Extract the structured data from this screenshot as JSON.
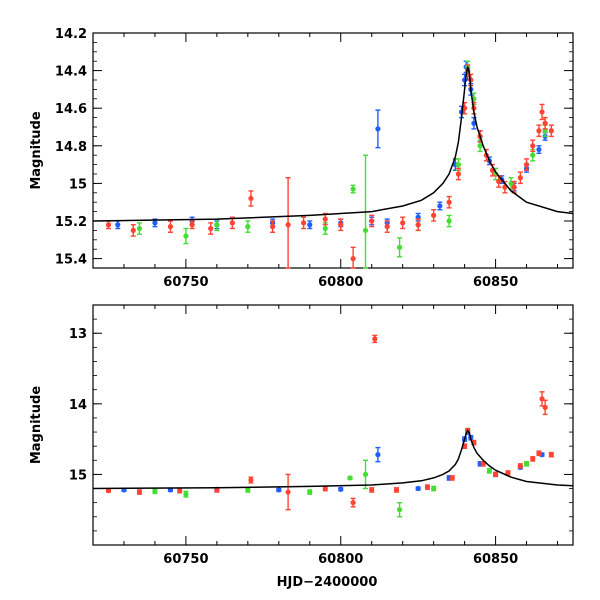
{
  "chart_data": [
    {
      "type": "scatter",
      "title": "",
      "xlabel": "",
      "ylabel": "Magnitude",
      "xlim": [
        60720,
        60875
      ],
      "ylim": [
        15.45,
        14.2
      ],
      "y_inverted": true,
      "x_ticks": [
        60750,
        60800,
        60850
      ],
      "x_tick_labels": [
        "60750",
        "60800",
        "60850"
      ],
      "y_ticks": [
        14.2,
        14.4,
        14.6,
        14.8,
        15,
        15.2,
        15.4
      ],
      "y_tick_labels": [
        "14.2",
        "14.4",
        "14.6",
        "14.8",
        "15",
        "15.2",
        "15.4"
      ],
      "grid": false,
      "legend": "none",
      "colors": {
        "blue": "#1f5fff",
        "green": "#44dd33",
        "red": "#ff4433",
        "model": "#000000"
      },
      "series": [
        {
          "color": "blue",
          "x": [
            60728,
            60740,
            60752,
            60760,
            60778,
            60790,
            60800,
            60810,
            60815,
            60825,
            60832,
            60837,
            60839,
            60840,
            60840.5,
            60841,
            60842,
            60843,
            60845,
            60848,
            60852,
            60856,
            60860,
            60864,
            60866,
            60812
          ],
          "y": [
            15.22,
            15.21,
            15.2,
            15.22,
            15.21,
            15.22,
            15.21,
            15.2,
            15.21,
            15.18,
            15.12,
            14.9,
            14.62,
            14.45,
            14.38,
            14.42,
            14.5,
            14.68,
            14.75,
            14.88,
            14.98,
            15.02,
            14.92,
            14.82,
            14.75,
            14.71
          ],
          "err": [
            0.02,
            0.02,
            0.02,
            0.02,
            0.02,
            0.02,
            0.02,
            0.02,
            0.02,
            0.02,
            0.02,
            0.03,
            0.03,
            0.03,
            0.03,
            0.03,
            0.03,
            0.03,
            0.03,
            0.02,
            0.02,
            0.02,
            0.02,
            0.02,
            0.02,
            0.1
          ]
        },
        {
          "color": "green",
          "x": [
            60735,
            60750,
            60760,
            60770,
            60795,
            60804,
            60808,
            60819,
            60825,
            60835,
            60838,
            60841,
            60843,
            60845,
            60850,
            60855,
            60862,
            60866
          ],
          "y": [
            15.24,
            15.28,
            15.22,
            15.23,
            15.24,
            15.03,
            15.25,
            15.34,
            15.22,
            15.2,
            14.9,
            14.38,
            14.55,
            14.8,
            14.95,
            15.0,
            14.85,
            14.72
          ],
          "err": [
            0.03,
            0.04,
            0.03,
            0.03,
            0.03,
            0.02,
            0.4,
            0.05,
            0.03,
            0.03,
            0.03,
            0.03,
            0.03,
            0.03,
            0.03,
            0.03,
            0.03,
            0.03
          ]
        },
        {
          "color": "red",
          "x": [
            60725,
            60733,
            60745,
            60752,
            60758,
            60765,
            60771,
            60778,
            60783,
            60788,
            60795,
            60800,
            60804,
            60810,
            60815,
            60820,
            60825,
            60830,
            60835,
            60838,
            60840,
            60841,
            60842,
            60843,
            60845,
            60847,
            60849,
            60851,
            60853,
            60856,
            60858,
            60860,
            60862,
            60864,
            60865,
            60866,
            60868
          ],
          "y": [
            15.22,
            15.25,
            15.23,
            15.22,
            15.24,
            15.21,
            15.08,
            15.23,
            15.22,
            15.21,
            15.19,
            15.22,
            15.4,
            15.2,
            15.23,
            15.21,
            15.22,
            15.17,
            15.1,
            14.95,
            14.6,
            14.4,
            14.45,
            14.6,
            14.75,
            14.85,
            14.93,
            14.99,
            15.02,
            15.02,
            14.97,
            14.9,
            14.8,
            14.72,
            14.62,
            14.68,
            14.72
          ],
          "err": [
            0.02,
            0.03,
            0.03,
            0.02,
            0.03,
            0.03,
            0.04,
            0.03,
            0.25,
            0.03,
            0.03,
            0.03,
            0.06,
            0.03,
            0.03,
            0.03,
            0.03,
            0.03,
            0.03,
            0.03,
            0.03,
            0.03,
            0.03,
            0.03,
            0.03,
            0.03,
            0.03,
            0.03,
            0.03,
            0.03,
            0.03,
            0.03,
            0.03,
            0.03,
            0.04,
            0.03,
            0.03
          ]
        }
      ],
      "model_curve": {
        "color": "model",
        "x": [
          60720,
          60760,
          60790,
          60810,
          60820,
          60826,
          60830,
          60833,
          60835,
          60837,
          60838,
          60839,
          60840,
          60840.5,
          60841,
          60841.5,
          60842,
          60843,
          60844,
          60846,
          60848,
          60850,
          60855,
          60860,
          60870,
          60875
        ],
        "y": [
          15.2,
          15.19,
          15.17,
          15.15,
          15.12,
          15.09,
          15.05,
          15.0,
          14.95,
          14.86,
          14.78,
          14.65,
          14.5,
          14.42,
          14.38,
          14.41,
          14.5,
          14.62,
          14.7,
          14.8,
          14.88,
          14.94,
          15.04,
          15.1,
          15.15,
          15.16
        ]
      }
    },
    {
      "type": "scatter",
      "title": "",
      "xlabel": "HJD−2400000",
      "ylabel": "Magnitude",
      "xlim": [
        60720,
        60875
      ],
      "ylim": [
        16.0,
        12.6
      ],
      "y_inverted": true,
      "x_ticks": [
        60750,
        60800,
        60850
      ],
      "x_tick_labels": [
        "60750",
        "60800",
        "60850"
      ],
      "y_ticks": [
        13,
        14,
        15
      ],
      "y_tick_labels": [
        "13",
        "14",
        "15"
      ],
      "grid": false,
      "legend": "none",
      "colors": {
        "blue": "#1f5fff",
        "green": "#44dd33",
        "red": "#ff4433",
        "model": "#000000"
      },
      "series": [
        {
          "color": "blue",
          "x": [
            60730,
            60745,
            60760,
            60780,
            60800,
            60812,
            60825,
            60835,
            60840,
            60841,
            60842,
            60845,
            60850,
            60858,
            60865
          ],
          "y": [
            15.22,
            15.22,
            15.21,
            15.22,
            15.21,
            14.72,
            15.2,
            15.05,
            14.5,
            14.4,
            14.48,
            14.85,
            15.0,
            14.9,
            14.72
          ],
          "err": [
            0.02,
            0.02,
            0.02,
            0.02,
            0.02,
            0.1,
            0.02,
            0.03,
            0.03,
            0.03,
            0.03,
            0.03,
            0.02,
            0.02,
            0.02
          ]
        },
        {
          "color": "green",
          "x": [
            60740,
            60750,
            60770,
            60790,
            60803,
            60808,
            60819,
            60830,
            60841,
            60848,
            60860
          ],
          "y": [
            15.24,
            15.28,
            15.22,
            15.25,
            15.05,
            15.0,
            15.5,
            15.2,
            14.38,
            14.95,
            14.85
          ],
          "err": [
            0.03,
            0.04,
            0.03,
            0.03,
            0.02,
            0.2,
            0.1,
            0.03,
            0.03,
            0.03,
            0.03
          ]
        },
        {
          "color": "red",
          "x": [
            60725,
            60735,
            60748,
            60760,
            60771,
            60783,
            60795,
            60804,
            60810,
            60811,
            60818,
            60828,
            60836,
            60840,
            60841,
            60843,
            60846,
            60850,
            60854,
            60858,
            60862,
            60864,
            60865,
            60866,
            60868
          ],
          "y": [
            15.23,
            15.25,
            15.23,
            15.22,
            15.08,
            15.25,
            15.2,
            15.4,
            15.22,
            13.08,
            15.22,
            15.18,
            15.05,
            14.6,
            14.38,
            14.55,
            14.85,
            15.0,
            14.98,
            14.88,
            14.78,
            14.7,
            13.93,
            14.05,
            14.72
          ],
          "err": [
            0.02,
            0.03,
            0.03,
            0.03,
            0.04,
            0.25,
            0.03,
            0.06,
            0.03,
            0.05,
            0.03,
            0.03,
            0.03,
            0.03,
            0.03,
            0.03,
            0.03,
            0.03,
            0.03,
            0.03,
            0.03,
            0.03,
            0.1,
            0.1,
            0.03
          ]
        }
      ],
      "model_curve": {
        "color": "model",
        "x": [
          60720,
          60760,
          60790,
          60810,
          60820,
          60826,
          60830,
          60833,
          60835,
          60837,
          60838,
          60839,
          60840,
          60840.5,
          60841,
          60841.5,
          60842,
          60843,
          60844,
          60846,
          60848,
          60850,
          60855,
          60860,
          60870,
          60875
        ],
        "y": [
          15.2,
          15.19,
          15.17,
          15.15,
          15.12,
          15.09,
          15.05,
          15.0,
          14.95,
          14.86,
          14.78,
          14.65,
          14.5,
          14.42,
          14.38,
          14.41,
          14.5,
          14.62,
          14.7,
          14.8,
          14.88,
          14.94,
          15.04,
          15.1,
          15.15,
          15.16
        ]
      }
    }
  ]
}
